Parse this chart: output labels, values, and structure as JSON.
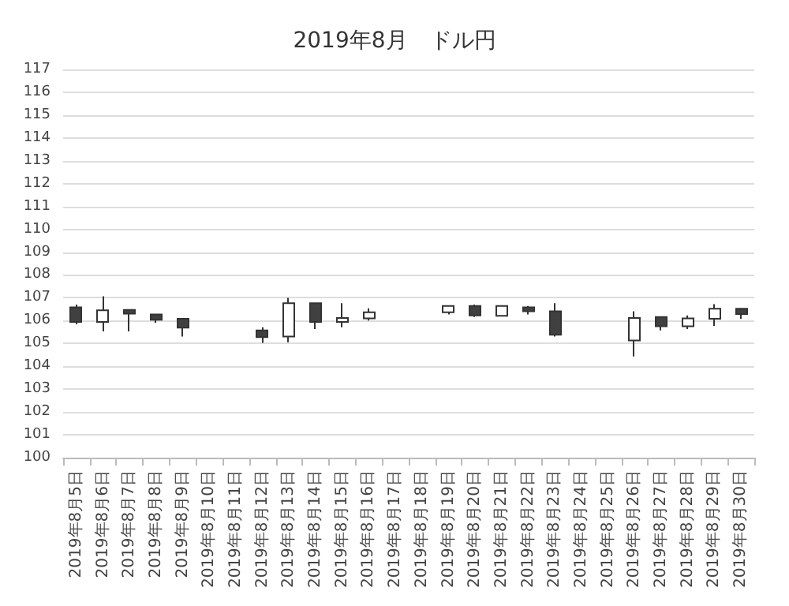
{
  "chart_data": {
    "type": "candlestick",
    "title": "2019年8月　ドル円",
    "categories": [
      "2019年8月5日",
      "2019年8月6日",
      "2019年8月7日",
      "2019年8月8日",
      "2019年8月9日",
      "2019年8月10日",
      "2019年8月11日",
      "2019年8月12日",
      "2019年8月13日",
      "2019年8月14日",
      "2019年8月15日",
      "2019年8月16日",
      "2019年8月17日",
      "2019年8月18日",
      "2019年8月19日",
      "2019年8月20日",
      "2019年8月21日",
      "2019年8月22日",
      "2019年8月23日",
      "2019年8月24日",
      "2019年8月25日",
      "2019年8月26日",
      "2019年8月27日",
      "2019年8月28日",
      "2019年8月29日",
      "2019年8月30日"
    ],
    "ohlc": [
      [
        106.58,
        106.7,
        105.84,
        105.94
      ],
      [
        105.94,
        107.07,
        105.53,
        106.45
      ],
      [
        106.47,
        106.47,
        105.53,
        106.31
      ],
      [
        106.27,
        106.27,
        105.9,
        106.04
      ],
      [
        106.08,
        106.12,
        105.3,
        105.69
      ],
      null,
      null,
      [
        105.57,
        105.71,
        105.03,
        105.28
      ],
      [
        105.3,
        107.0,
        105.05,
        106.76
      ],
      [
        106.76,
        106.76,
        105.63,
        105.94
      ],
      [
        105.94,
        106.76,
        105.71,
        106.12
      ],
      [
        106.1,
        106.54,
        106.0,
        106.37
      ],
      null,
      null,
      [
        106.37,
        106.68,
        106.27,
        106.64
      ],
      [
        106.64,
        106.7,
        106.16,
        106.23
      ],
      [
        106.21,
        106.64,
        106.21,
        106.64
      ],
      [
        106.58,
        106.64,
        106.27,
        106.41
      ],
      [
        106.41,
        106.76,
        105.3,
        105.38
      ],
      null,
      null,
      [
        105.13,
        106.41,
        104.43,
        106.12
      ],
      [
        106.16,
        106.16,
        105.57,
        105.75
      ],
      [
        105.75,
        106.23,
        105.63,
        106.1
      ],
      [
        106.08,
        106.72,
        105.77,
        106.52
      ],
      [
        106.52,
        106.56,
        106.08,
        106.29
      ]
    ],
    "colors": [
      "#404040",
      "#ffffff",
      "#404040",
      "#404040",
      "#404040",
      null,
      null,
      "#404040",
      "#ffffff",
      "#404040",
      "#ffffff",
      "#ffffff",
      null,
      null,
      "#ffffff",
      "#404040",
      "#ffffff",
      "#404040",
      "#404040",
      null,
      null,
      "#ffffff",
      "#404040",
      "#ffffff",
      "#ffffff",
      "#404040"
    ],
    "ylim": [
      100,
      117
    ],
    "yticks": [
      100,
      101,
      102,
      103,
      104,
      105,
      106,
      107,
      108,
      109,
      110,
      111,
      112,
      113,
      114,
      115,
      116,
      117
    ],
    "grid": "y"
  }
}
